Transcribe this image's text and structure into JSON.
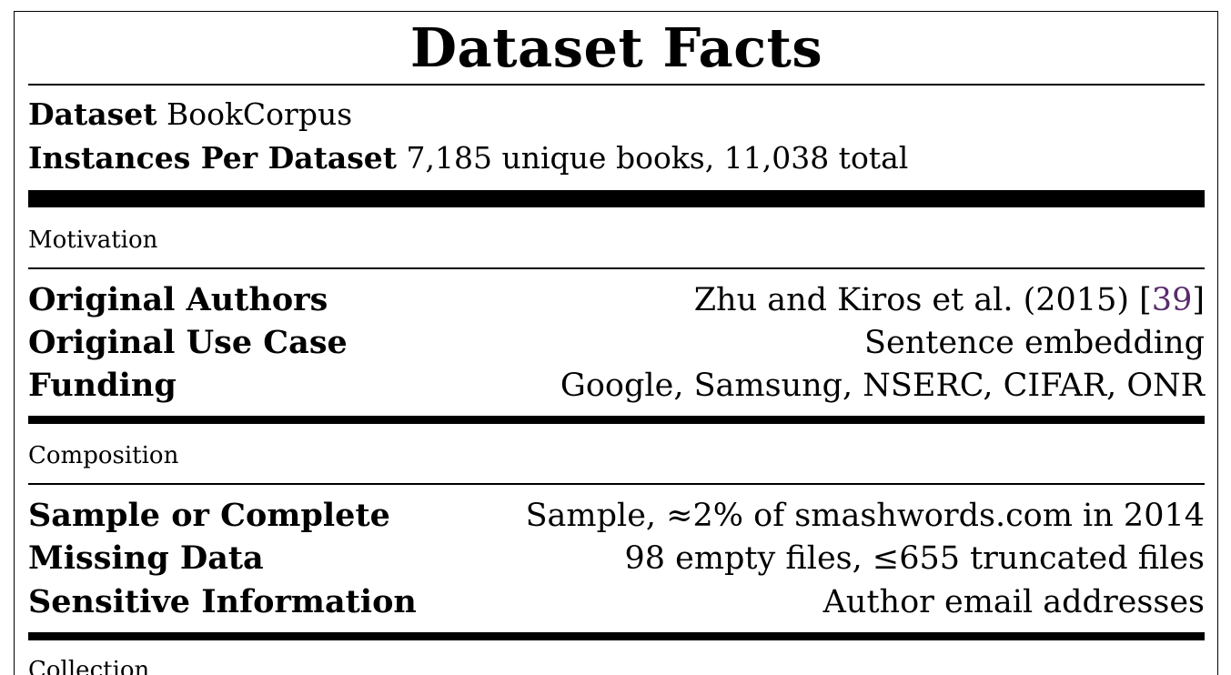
{
  "title": "Dataset Facts",
  "header": {
    "dataset_label": "Dataset",
    "dataset_value": "BookCorpus",
    "instances_label": "Instances Per Dataset",
    "instances_value": "7,185 unique books, 11,038 total"
  },
  "sections": {
    "motivation": {
      "label": "Motivation",
      "rows": [
        {
          "key": "Original Authors",
          "value": "Zhu and Kiros et al. (2015) [",
          "cite": "39",
          "tail": "]"
        },
        {
          "key": "Original Use Case",
          "value": "Sentence embedding"
        },
        {
          "key": "Funding",
          "value": "Google, Samsung, NSERC, CIFAR, ONR"
        }
      ]
    },
    "composition": {
      "label": "Composition",
      "rows": [
        {
          "key": "Sample or Complete",
          "value": "Sample, ≈2% of smashwords.com in 2014"
        },
        {
          "key": "Missing Data",
          "value": "98 empty files, ≤655 truncated files"
        },
        {
          "key": "Sensitive Information",
          "value": "Author email addresses"
        }
      ]
    },
    "collection": {
      "label": "Collection"
    }
  },
  "colors": {
    "citation": "#5a2b6e"
  }
}
